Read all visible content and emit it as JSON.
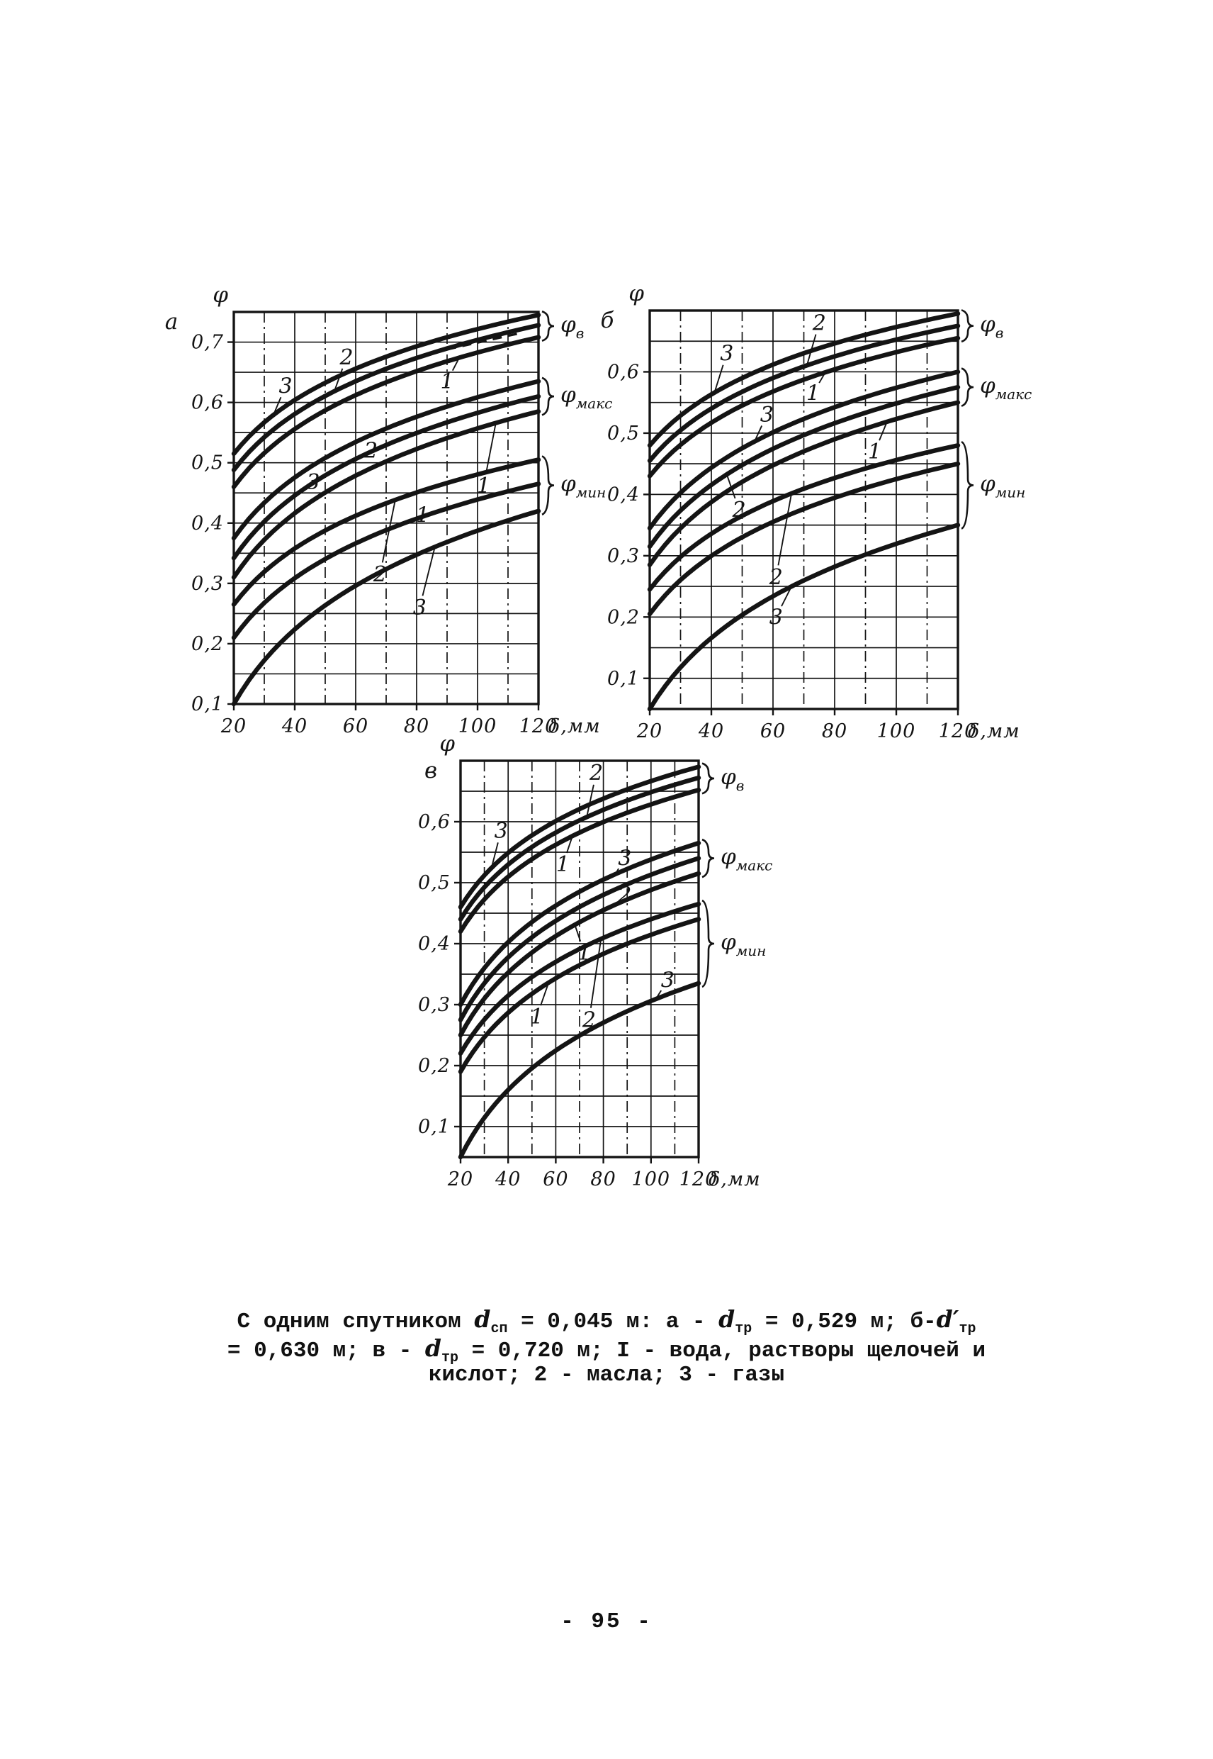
{
  "page": {
    "number": "- 95 -",
    "ink": "#141414",
    "paper": "#ffffff"
  },
  "caption": {
    "lines": [
      [
        {
          "t": "С одним спутником "
        },
        {
          "i": "d"
        },
        {
          "sub": "сп"
        },
        {
          "t": " = 0,045 м: а - "
        },
        {
          "i": "d"
        },
        {
          "sub": "тр"
        },
        {
          "t": " = 0,529 м;  б-"
        },
        {
          "i": "d′"
        },
        {
          "sub": "тр"
        }
      ],
      [
        {
          "t": "= 0,630 м; в - "
        },
        {
          "i": "d"
        },
        {
          "sub": "тр"
        },
        {
          "t": " = 0,720 м; I - вода, растворы щелочей и"
        }
      ],
      [
        {
          "t": "кислот; 2 - масла; 3 - газы"
        }
      ]
    ]
  },
  "chart_data": [
    {
      "type": "line",
      "panel": "а",
      "ylabel": "φ",
      "xlabel": "δ,мм",
      "xlim": [
        20,
        120
      ],
      "ylim": [
        0.1,
        0.75
      ],
      "x_ticks": [
        20,
        40,
        60,
        80,
        100,
        120
      ],
      "y_ticks": [
        0.1,
        0.2,
        0.3,
        0.4,
        0.5,
        0.6,
        0.7
      ],
      "x_grid_step": 10,
      "y_grid_step": 0.05,
      "curve_shape": "log",
      "series": [
        {
          "label": "3",
          "group": "в",
          "phi_at_20": 0.515,
          "phi_at_120": 0.745
        },
        {
          "label": "2",
          "group": "в",
          "phi_at_20": 0.488,
          "phi_at_120": 0.728
        },
        {
          "label": "1",
          "group": "в",
          "phi_at_20": 0.46,
          "phi_at_120": 0.708
        },
        {
          "label": "3",
          "group": "макс",
          "phi_at_20": 0.375,
          "phi_at_120": 0.635
        },
        {
          "label": "2",
          "group": "макс",
          "phi_at_20": 0.342,
          "phi_at_120": 0.61
        },
        {
          "label": "1",
          "group": "макс",
          "phi_at_20": 0.31,
          "phi_at_120": 0.585
        },
        {
          "label": "2",
          "group": "мин",
          "phi_at_20": 0.265,
          "phi_at_120": 0.505
        },
        {
          "label": "1",
          "group": "мин",
          "phi_at_20": 0.21,
          "phi_at_120": 0.465
        },
        {
          "label": "3",
          "group": "мин",
          "phi_at_20": 0.1,
          "phi_at_120": 0.42
        }
      ],
      "curve_labels": [
        {
          "text": "2",
          "x": 57,
          "y": 0.675,
          "curve": 1,
          "tx": 53
        },
        {
          "text": "3",
          "x": 37,
          "y": 0.627,
          "curve": 0,
          "tx": 33
        },
        {
          "text": "1",
          "x": 90,
          "y": 0.635,
          "curve": 2,
          "tx": 94
        },
        {
          "text": "2",
          "x": 65,
          "y": 0.52,
          "curve": 4,
          "tx": 61
        },
        {
          "text": "3",
          "x": 46,
          "y": 0.468,
          "curve": 3,
          "tx": 42
        },
        {
          "text": "1",
          "x": 102,
          "y": 0.462,
          "curve": 5,
          "tx": 106
        },
        {
          "text": "1",
          "x": 82,
          "y": 0.413,
          "curve": 7,
          "tx": 78
        },
        {
          "text": "2",
          "x": 68,
          "y": 0.315,
          "curve": 6,
          "tx": 73
        },
        {
          "text": "3",
          "x": 81,
          "y": 0.26,
          "curve": 8,
          "tx": 86
        }
      ],
      "right_labels": [
        {
          "text": "φ",
          "sub": "в",
          "curves": [
            0,
            1,
            2
          ]
        },
        {
          "text": "φ",
          "sub": "макс",
          "curves": [
            3,
            4,
            5
          ]
        },
        {
          "text": "φ",
          "sub": "мин",
          "curves": [
            6,
            7,
            8
          ]
        }
      ],
      "dash_mark": {
        "x1": 90,
        "y1": 0.688,
        "x2": 114,
        "y2": 0.715
      }
    },
    {
      "type": "line",
      "panel": "б",
      "ylabel": "φ",
      "xlabel": "δ,мм",
      "xlim": [
        20,
        120
      ],
      "ylim": [
        0.05,
        0.7
      ],
      "x_ticks": [
        20,
        40,
        60,
        80,
        100,
        120
      ],
      "y_ticks": [
        0.1,
        0.2,
        0.3,
        0.4,
        0.5,
        0.6
      ],
      "x_grid_step": 10,
      "y_grid_step": 0.05,
      "curve_shape": "log",
      "series": [
        {
          "label": "3",
          "group": "в",
          "phi_at_20": 0.48,
          "phi_at_120": 0.695
        },
        {
          "label": "2",
          "group": "в",
          "phi_at_20": 0.455,
          "phi_at_120": 0.675
        },
        {
          "label": "1",
          "group": "в",
          "phi_at_20": 0.43,
          "phi_at_120": 0.655
        },
        {
          "label": "3",
          "group": "макс",
          "phi_at_20": 0.345,
          "phi_at_120": 0.6
        },
        {
          "label": "2",
          "group": "макс",
          "phi_at_20": 0.315,
          "phi_at_120": 0.575
        },
        {
          "label": "1",
          "group": "макс",
          "phi_at_20": 0.285,
          "phi_at_120": 0.55
        },
        {
          "label": "2",
          "group": "мин",
          "phi_at_20": 0.245,
          "phi_at_120": 0.48
        },
        {
          "label": "1",
          "group": "мин",
          "phi_at_20": 0.205,
          "phi_at_120": 0.45
        },
        {
          "label": "3",
          "group": "мин",
          "phi_at_20": 0.05,
          "phi_at_120": 0.35
        }
      ],
      "curve_labels": [
        {
          "text": "2",
          "x": 75,
          "y": 0.68,
          "curve": 1,
          "tx": 71
        },
        {
          "text": "3",
          "x": 45,
          "y": 0.63,
          "curve": 0,
          "tx": 41
        },
        {
          "text": "1",
          "x": 73,
          "y": 0.565,
          "curve": 2,
          "tx": 77
        },
        {
          "text": "3",
          "x": 58,
          "y": 0.53,
          "curve": 3,
          "tx": 54
        },
        {
          "text": "1",
          "x": 93,
          "y": 0.47,
          "curve": 5,
          "tx": 97
        },
        {
          "text": "2",
          "x": 49,
          "y": 0.375,
          "curve": 4,
          "tx": 45
        },
        {
          "text": "2",
          "x": 61,
          "y": 0.265,
          "curve": 6,
          "tx": 66
        },
        {
          "text": "3",
          "x": 61,
          "y": 0.2,
          "curve": 8,
          "tx": 66
        }
      ],
      "right_labels": [
        {
          "text": "φ",
          "sub": "в",
          "curves": [
            0,
            1,
            2
          ]
        },
        {
          "text": "φ",
          "sub": "макс",
          "curves": [
            3,
            4,
            5
          ]
        },
        {
          "text": "φ",
          "sub": "мин",
          "curves": [
            6,
            7,
            8
          ]
        }
      ]
    },
    {
      "type": "line",
      "panel": "в",
      "ylabel": "φ",
      "xlabel": "δ,мм",
      "xlim": [
        20,
        120
      ],
      "ylim": [
        0.05,
        0.7
      ],
      "x_ticks": [
        20,
        40,
        60,
        80,
        100,
        120
      ],
      "y_ticks": [
        0.1,
        0.2,
        0.3,
        0.4,
        0.5,
        0.6
      ],
      "x_grid_step": 10,
      "y_grid_step": 0.05,
      "curve_shape": "log",
      "series": [
        {
          "label": "3",
          "group": "в",
          "phi_at_20": 0.46,
          "phi_at_120": 0.69
        },
        {
          "label": "2",
          "group": "в",
          "phi_at_20": 0.44,
          "phi_at_120": 0.672
        },
        {
          "label": "1",
          "group": "в",
          "phi_at_20": 0.42,
          "phi_at_120": 0.652
        },
        {
          "label": "3",
          "group": "макс",
          "phi_at_20": 0.3,
          "phi_at_120": 0.565
        },
        {
          "label": "2",
          "group": "макс",
          "phi_at_20": 0.275,
          "phi_at_120": 0.54
        },
        {
          "label": "1",
          "group": "макс",
          "phi_at_20": 0.25,
          "phi_at_120": 0.515
        },
        {
          "label": "2",
          "group": "мин",
          "phi_at_20": 0.22,
          "phi_at_120": 0.465
        },
        {
          "label": "1",
          "group": "мин",
          "phi_at_20": 0.19,
          "phi_at_120": 0.44
        },
        {
          "label": "3",
          "group": "мин",
          "phi_at_20": 0.05,
          "phi_at_120": 0.335
        }
      ],
      "curve_labels": [
        {
          "text": "2",
          "x": 77,
          "y": 0.68,
          "curve": 1,
          "tx": 73
        },
        {
          "text": "3",
          "x": 37,
          "y": 0.585,
          "curve": 0,
          "tx": 33
        },
        {
          "text": "1",
          "x": 63,
          "y": 0.53,
          "curve": 2,
          "tx": 67
        },
        {
          "text": "3",
          "x": 89,
          "y": 0.54,
          "curve": 3,
          "tx": 85
        },
        {
          "text": "2",
          "x": 89,
          "y": 0.48,
          "curve": 4,
          "tx": 93
        },
        {
          "text": "1",
          "x": 72,
          "y": 0.385,
          "curve": 5,
          "tx": 68
        },
        {
          "text": "1",
          "x": 52,
          "y": 0.28,
          "curve": 7,
          "tx": 57
        },
        {
          "text": "2",
          "x": 74,
          "y": 0.275,
          "curve": 6,
          "tx": 79
        },
        {
          "text": "3",
          "x": 107,
          "y": 0.34,
          "curve": 8,
          "tx": 102
        }
      ],
      "right_labels": [
        {
          "text": "φ",
          "sub": "в",
          "curves": [
            0,
            1,
            2
          ]
        },
        {
          "text": "φ",
          "sub": "макс",
          "curves": [
            3,
            4,
            5
          ]
        },
        {
          "text": "φ",
          "sub": "мин",
          "curves": [
            6,
            7,
            8
          ]
        }
      ]
    }
  ]
}
